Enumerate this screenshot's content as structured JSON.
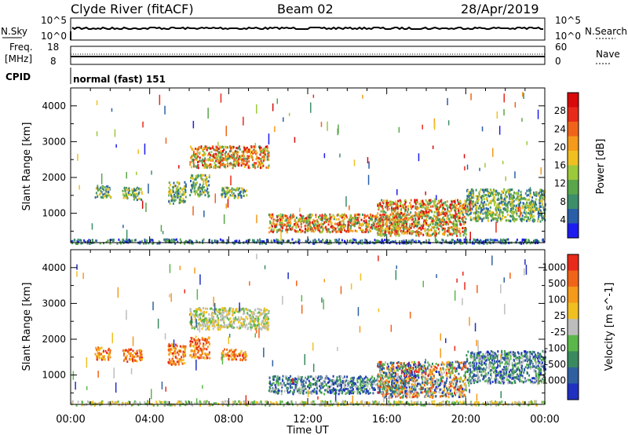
{
  "header": {
    "station": "Clyde River (fitACF)",
    "beam": "Beam 02",
    "date": "28/Apr/2019"
  },
  "nsky_panel": {
    "left_label": "N.Sky",
    "right_label": "N.Search",
    "left_ticks": [
      "10^5",
      "10^0"
    ],
    "right_ticks": [
      "10^5",
      "10^0"
    ]
  },
  "freq_panel": {
    "left_label_1": "Freq.",
    "left_label_2": "[MHz]",
    "left_ticks": [
      "18",
      "8"
    ],
    "right_label": "Nave",
    "right_ticks": [
      "60",
      "0"
    ]
  },
  "cpid_panel": {
    "label": "CPID",
    "mode": "normal (fast) 151"
  },
  "x_axis": {
    "label": "Time UT",
    "ticks": [
      "00:00",
      "04:00",
      "08:00",
      "12:00",
      "16:00",
      "20:00",
      "00:00"
    ]
  },
  "chart_data": [
    {
      "type": "heatmap",
      "title": "Power",
      "ylabel": "Slant Range [km]",
      "xlabel": "",
      "yticks": [
        1000,
        2000,
        3000,
        4000
      ],
      "ylim": [
        180,
        4500
      ],
      "xlim_hours": [
        0,
        24
      ],
      "colorbar": {
        "label": "Power [dB]",
        "ticks": [
          "4",
          "8",
          "12",
          "16",
          "20",
          "24",
          "28"
        ],
        "colors": [
          "#1c1cf0",
          "#2a5fa8",
          "#3d8f6a",
          "#5aa64a",
          "#9cc93a",
          "#f0c020",
          "#f59a1a",
          "#f0641a",
          "#e82a1a",
          "#d80a0a"
        ]
      },
      "regions": [
        {
          "t": [
            0.0,
            24.0
          ],
          "r": [
            180,
            300
          ],
          "level": "low"
        },
        {
          "t": [
            1.2,
            2.0
          ],
          "r": [
            1450,
            1800
          ],
          "level": "mid"
        },
        {
          "t": [
            2.6,
            3.6
          ],
          "r": [
            1400,
            1750
          ],
          "level": "mid"
        },
        {
          "t": [
            4.9,
            5.8
          ],
          "r": [
            1300,
            1900
          ],
          "level": "mid"
        },
        {
          "t": [
            6.0,
            7.0
          ],
          "r": [
            1500,
            2100
          ],
          "level": "mid"
        },
        {
          "t": [
            7.6,
            8.9
          ],
          "r": [
            1450,
            1750
          ],
          "level": "mid"
        },
        {
          "t": [
            6.0,
            10.0
          ],
          "r": [
            2300,
            2900
          ],
          "level": "high"
        },
        {
          "t": [
            10.0,
            17.0
          ],
          "r": [
            500,
            1000
          ],
          "level": "high"
        },
        {
          "t": [
            15.5,
            20.0
          ],
          "r": [
            400,
            1400
          ],
          "level": "high"
        },
        {
          "t": [
            20.0,
            24.0
          ],
          "r": [
            800,
            1700
          ],
          "level": "mid"
        }
      ]
    },
    {
      "type": "heatmap",
      "title": "Velocity",
      "ylabel": "Slant Range [km]",
      "xlabel": "Time UT",
      "yticks": [
        1000,
        2000,
        3000,
        4000
      ],
      "ylim": [
        180,
        4500
      ],
      "xlim_hours": [
        0,
        24
      ],
      "colorbar": {
        "label": "Velocity [m s^-1]",
        "ticks": [
          "1000",
          "500",
          "100",
          "25",
          "-25",
          "-100",
          "-500",
          "-1000"
        ],
        "colors": [
          "#2030c0",
          "#3060a0",
          "#3a8a60",
          "#5ab84a",
          "#bdbdbd",
          "#f0c020",
          "#f59a1a",
          "#f06418",
          "#e82a1a"
        ]
      },
      "regions": [
        {
          "t": [
            0.0,
            24.0
          ],
          "r": [
            180,
            300
          ],
          "level": "near-zero"
        },
        {
          "t": [
            1.2,
            2.0
          ],
          "r": [
            1450,
            1800
          ],
          "level": "negative"
        },
        {
          "t": [
            2.6,
            3.6
          ],
          "r": [
            1400,
            1750
          ],
          "level": "negative"
        },
        {
          "t": [
            4.9,
            5.8
          ],
          "r": [
            1300,
            1900
          ],
          "level": "negative"
        },
        {
          "t": [
            6.0,
            7.0
          ],
          "r": [
            1500,
            2100
          ],
          "level": "negative"
        },
        {
          "t": [
            7.6,
            8.9
          ],
          "r": [
            1450,
            1750
          ],
          "level": "negative"
        },
        {
          "t": [
            6.0,
            10.0
          ],
          "r": [
            2300,
            2900
          ],
          "level": "near-zero"
        },
        {
          "t": [
            10.0,
            17.0
          ],
          "r": [
            500,
            1000
          ],
          "level": "positive"
        },
        {
          "t": [
            15.5,
            20.0
          ],
          "r": [
            400,
            1400
          ],
          "level": "mixed"
        },
        {
          "t": [
            20.0,
            24.0
          ],
          "r": [
            800,
            1700
          ],
          "level": "positive"
        }
      ]
    }
  ]
}
